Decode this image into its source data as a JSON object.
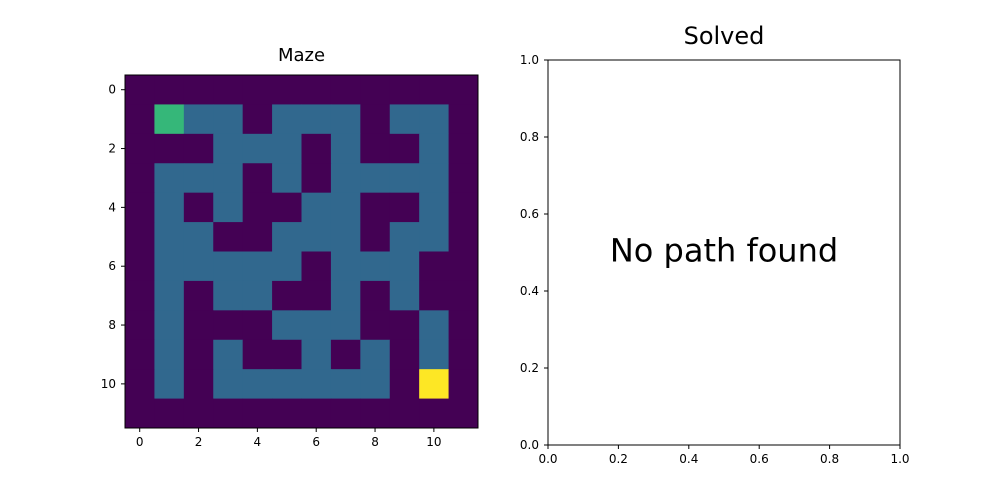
{
  "chart_data": [
    {
      "type": "heatmap",
      "title": "Maze",
      "xlabel": "",
      "ylabel": "",
      "colormap": "viridis",
      "value_colors": {
        "0": "#440154",
        "1": "#31688e",
        "2": "#35b779",
        "3": "#fde725"
      },
      "xlim": [
        -0.5,
        11.5
      ],
      "ylim": [
        11.5,
        -0.5
      ],
      "xticks": [
        0,
        2,
        4,
        6,
        8,
        10
      ],
      "yticks": [
        0,
        2,
        4,
        6,
        8,
        10
      ],
      "grid_values": [
        [
          0,
          0,
          0,
          0,
          0,
          0,
          0,
          0,
          0,
          0,
          0,
          0
        ],
        [
          0,
          2,
          1,
          1,
          0,
          1,
          1,
          1,
          0,
          1,
          1,
          0
        ],
        [
          0,
          0,
          0,
          1,
          1,
          1,
          0,
          1,
          0,
          0,
          1,
          0
        ],
        [
          0,
          1,
          1,
          1,
          0,
          1,
          0,
          1,
          1,
          1,
          1,
          0
        ],
        [
          0,
          1,
          0,
          1,
          0,
          0,
          1,
          1,
          0,
          0,
          1,
          0
        ],
        [
          0,
          1,
          1,
          0,
          0,
          1,
          1,
          1,
          0,
          1,
          1,
          0
        ],
        [
          0,
          1,
          1,
          1,
          1,
          1,
          0,
          1,
          1,
          1,
          0,
          0
        ],
        [
          0,
          1,
          0,
          1,
          1,
          0,
          0,
          1,
          0,
          1,
          0,
          0
        ],
        [
          0,
          1,
          0,
          0,
          0,
          1,
          1,
          1,
          0,
          0,
          1,
          0
        ],
        [
          0,
          1,
          0,
          1,
          0,
          0,
          1,
          0,
          1,
          0,
          1,
          0
        ],
        [
          0,
          1,
          0,
          1,
          1,
          1,
          1,
          1,
          1,
          0,
          3,
          0
        ],
        [
          0,
          0,
          0,
          0,
          0,
          0,
          0,
          0,
          0,
          0,
          0,
          0
        ]
      ],
      "grid": false
    },
    {
      "type": "line",
      "title": "Solved",
      "xlabel": "",
      "ylabel": "",
      "xlim": [
        0,
        1
      ],
      "ylim": [
        0,
        1
      ],
      "xticks": [
        "0.0",
        "0.2",
        "0.4",
        "0.6",
        "0.8",
        "1.0"
      ],
      "yticks": [
        "0.0",
        "0.2",
        "0.4",
        "0.6",
        "0.8",
        "1.0"
      ],
      "series": [],
      "annotation": "No path found",
      "grid": false
    }
  ]
}
